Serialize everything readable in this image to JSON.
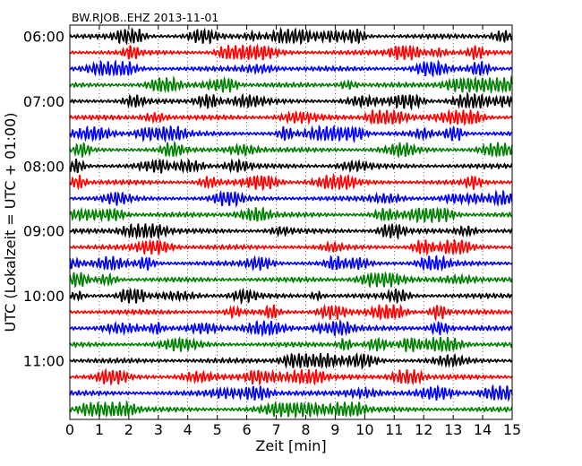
{
  "chart_data": {
    "type": "line",
    "title": "BW.RJOB..EHZ 2013-11-01",
    "xlabel": "Zeit  [min]",
    "ylabel": "UTC (Lokalzeit = UTC + 01:00)",
    "xlim": [
      0,
      15
    ],
    "xticks": [
      "0",
      "1",
      "2",
      "3",
      "4",
      "5",
      "6",
      "7",
      "8",
      "9",
      "10",
      "11",
      "12",
      "13",
      "14",
      "15"
    ],
    "yticks": [
      "06:00",
      "07:00",
      "08:00",
      "09:00",
      "10:00",
      "11:00"
    ],
    "grid": true,
    "line_colors": [
      "#000000",
      "#ff0000",
      "#0000ff",
      "#008000"
    ],
    "traces": [
      "06:00",
      "06:15",
      "06:30",
      "06:45",
      "07:00",
      "07:15",
      "07:30",
      "07:45",
      "08:00",
      "08:15",
      "08:30",
      "08:45",
      "09:00",
      "09:15",
      "09:30",
      "09:45",
      "10:00",
      "10:15",
      "10:30",
      "10:45",
      "11:00",
      "11:15",
      "11:30",
      "11:45"
    ]
  }
}
